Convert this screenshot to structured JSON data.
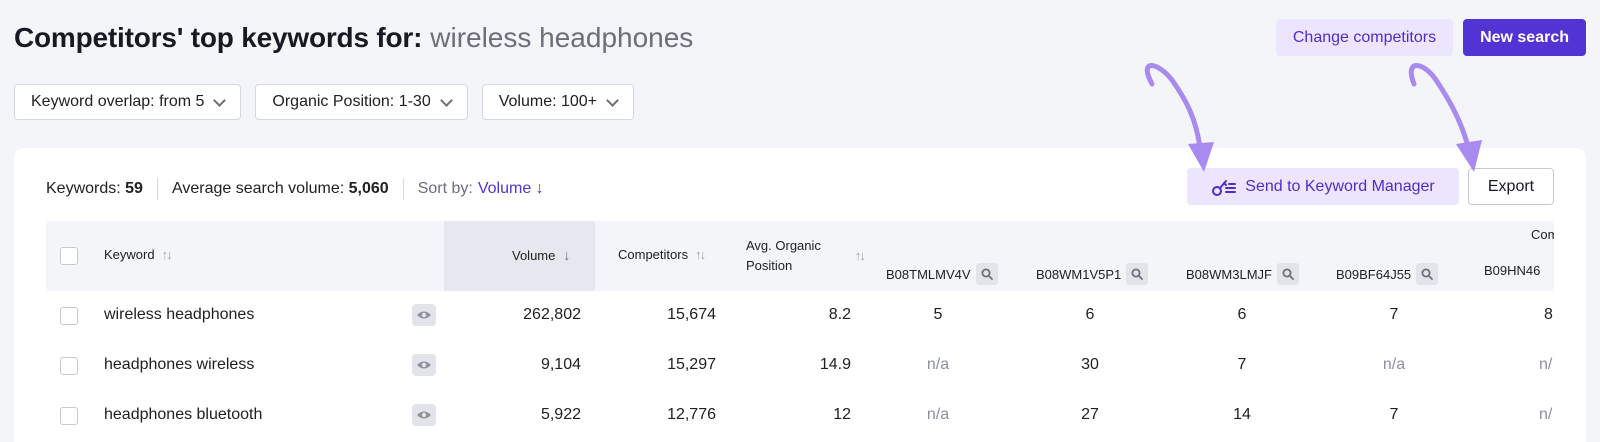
{
  "header": {
    "title": "Competitors' top keywords for:",
    "query": "wireless headphones",
    "change_competitors_label": "Change competitors",
    "new_search_label": "New search"
  },
  "filters": [
    {
      "label": "Keyword overlap: from 5"
    },
    {
      "label": "Organic Position: 1-30"
    },
    {
      "label": "Volume: 100+"
    }
  ],
  "stats": {
    "keywords_label": "Keywords:",
    "keywords_value": "59",
    "avg_volume_label": "Average search volume:",
    "avg_volume_value": "5,060",
    "sort_label": "Sort by:",
    "sort_value": "Volume ↓"
  },
  "actions": {
    "send_label": "Send to Keyword Manager",
    "export_label": "Export"
  },
  "table": {
    "columns": {
      "keyword": "Keyword",
      "volume": "Volume",
      "competitors": "Competitors",
      "avg_position_line1": "Avg. Organic",
      "avg_position_line2": "Position",
      "group_header": "Com",
      "asins": [
        "B08TMLMV4V",
        "B08WM1V5P1",
        "B08WM3LMJF",
        "B09BF64J55",
        "B09HN46"
      ]
    },
    "rows": [
      {
        "keyword": "wireless headphones",
        "volume": "262,802",
        "competitors": "15,674",
        "avg_position": "8.2",
        "positions": [
          "5",
          "6",
          "6",
          "7",
          "8"
        ]
      },
      {
        "keyword": "headphones wireless",
        "volume": "9,104",
        "competitors": "15,297",
        "avg_position": "14.9",
        "positions": [
          "n/a",
          "30",
          "7",
          "n/a",
          "n/"
        ]
      },
      {
        "keyword": "headphones bluetooth",
        "volume": "5,922",
        "competitors": "12,776",
        "avg_position": "12",
        "positions": [
          "n/a",
          "27",
          "14",
          "7",
          "n/"
        ]
      }
    ]
  },
  "colors": {
    "accent": "#5234d4",
    "accent_soft": "#ebe6fd",
    "annotation_arrow": "#a98af0"
  }
}
